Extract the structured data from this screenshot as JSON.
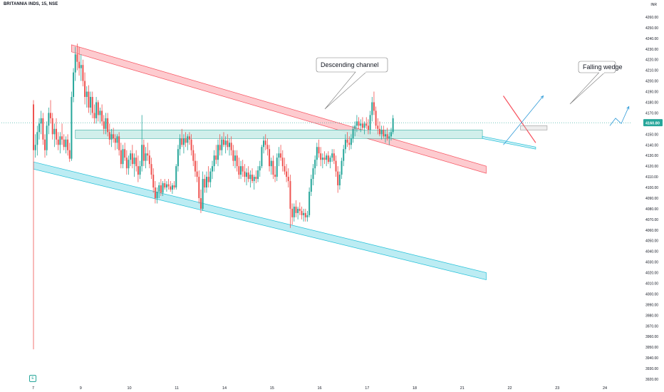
{
  "header": {
    "symbol_title": "BRITANNIA INDS, 15, NSE",
    "currency": "INR"
  },
  "last_price": {
    "value": 4160.8,
    "label": "4160.80",
    "color": "#26a69a"
  },
  "colors": {
    "up": "#26a69a",
    "down": "#ef5350",
    "channel_red": "#f7525f",
    "channel_cyan": "#22c0d8",
    "zone_fill": "#cdeee9",
    "arrow_blue": "#2f9bd8"
  },
  "badge": {
    "label": "E",
    "icon": "earnings-icon"
  },
  "annotations": {
    "descending_channel": "Descending channel",
    "falling_wedge": "Falling wedge"
  },
  "chart_data": {
    "type": "candlestick",
    "title": "BRITANNIA INDS, 15, NSE",
    "ylim": [
      3920,
      4270
    ],
    "y_ticks": [
      3920,
      3930,
      3940,
      3950,
      3960,
      3970,
      3980,
      3990,
      4000,
      4010,
      4020,
      4030,
      4040,
      4050,
      4060,
      4070,
      4080,
      4090,
      4100,
      4110,
      4120,
      4130,
      4140,
      4150,
      4160,
      4170,
      4180,
      4190,
      4200,
      4210,
      4220,
      4230,
      4240,
      4250,
      4260
    ],
    "y_tick_labels": [
      "3920.00",
      "3930.00",
      "3940.00",
      "3950.00",
      "3960.00",
      "3970.00",
      "3980.00",
      "3990.00",
      "4000.00",
      "4010.00",
      "4020.00",
      "4030.00",
      "4040.00",
      "4050.00",
      "4060.00",
      "4070.00",
      "4080.00",
      "4090.00",
      "4100.00",
      "4110.00",
      "4120.00",
      "4130.00",
      "4140.00",
      "4150.00",
      "4160.00",
      "4170.00",
      "4180.00",
      "4190.00",
      "4200.00",
      "4210.00",
      "4220.00",
      "4230.00",
      "4240.00",
      "4250.00",
      "4260.00"
    ],
    "x_labels": [
      "7",
      "9",
      "10",
      "11",
      "14",
      "15",
      "16",
      "17",
      "18",
      "21",
      "22",
      "23",
      "24"
    ],
    "x_label_bar_index": [
      0,
      25,
      50,
      75,
      100,
      125,
      150,
      175,
      200,
      225,
      250,
      275,
      300
    ],
    "grid": false,
    "ohlc": [
      [
        4178,
        4182,
        3948,
        4135
      ],
      [
        4135,
        4150,
        4128,
        4140
      ],
      [
        4140,
        4158,
        4130,
        4152
      ],
      [
        4152,
        4165,
        4145,
        4160
      ],
      [
        4160,
        4172,
        4150,
        4165
      ],
      [
        4165,
        4170,
        4140,
        4145
      ],
      [
        4145,
        4150,
        4128,
        4135
      ],
      [
        4135,
        4162,
        4130,
        4158
      ],
      [
        4158,
        4175,
        4150,
        4170
      ],
      [
        4170,
        4182,
        4160,
        4165
      ],
      [
        4165,
        4170,
        4145,
        4150
      ],
      [
        4150,
        4160,
        4138,
        4155
      ],
      [
        4155,
        4165,
        4140,
        4145
      ],
      [
        4145,
        4152,
        4135,
        4140
      ],
      [
        4140,
        4152,
        4132,
        4148
      ],
      [
        4148,
        4160,
        4140,
        4145
      ],
      [
        4145,
        4150,
        4135,
        4138
      ],
      [
        4138,
        4148,
        4132,
        4145
      ],
      [
        4145,
        4150,
        4130,
        4135
      ],
      [
        4135,
        4142,
        4124,
        4127
      ],
      [
        4127,
        4190,
        4125,
        4185
      ],
      [
        4185,
        4212,
        4180,
        4208
      ],
      [
        4208,
        4232,
        4200,
        4225
      ],
      [
        4225,
        4235,
        4210,
        4218
      ],
      [
        4218,
        4232,
        4205,
        4212
      ],
      [
        4212,
        4225,
        4200,
        4215
      ],
      [
        4215,
        4220,
        4195,
        4200
      ],
      [
        4200,
        4208,
        4178,
        4185
      ],
      [
        4185,
        4195,
        4175,
        4190
      ],
      [
        4190,
        4196,
        4170,
        4175
      ],
      [
        4175,
        4190,
        4168,
        4185
      ],
      [
        4185,
        4190,
        4165,
        4170
      ],
      [
        4170,
        4178,
        4160,
        4165
      ],
      [
        4165,
        4185,
        4160,
        4180
      ],
      [
        4180,
        4182,
        4162,
        4168
      ],
      [
        4168,
        4175,
        4160,
        4172
      ],
      [
        4172,
        4178,
        4158,
        4162
      ],
      [
        4162,
        4168,
        4150,
        4155
      ],
      [
        4155,
        4170,
        4150,
        4165
      ],
      [
        4165,
        4170,
        4148,
        4152
      ],
      [
        4152,
        4160,
        4140,
        4145
      ],
      [
        4145,
        4155,
        4138,
        4150
      ],
      [
        4150,
        4156,
        4142,
        4146
      ],
      [
        4146,
        4150,
        4135,
        4142
      ],
      [
        4142,
        4150,
        4136,
        4148
      ],
      [
        4148,
        4152,
        4130,
        4135
      ],
      [
        4135,
        4142,
        4118,
        4122
      ],
      [
        4122,
        4140,
        4118,
        4136
      ],
      [
        4136,
        4142,
        4125,
        4128
      ],
      [
        4128,
        4135,
        4112,
        4118
      ],
      [
        4118,
        4130,
        4112,
        4126
      ],
      [
        4126,
        4135,
        4120,
        4132
      ],
      [
        4132,
        4140,
        4118,
        4122
      ],
      [
        4122,
        4132,
        4110,
        4128
      ],
      [
        4128,
        4135,
        4115,
        4120
      ],
      [
        4120,
        4130,
        4105,
        4112
      ],
      [
        4112,
        4125,
        4108,
        4120
      ],
      [
        4120,
        4168,
        4115,
        4140
      ],
      [
        4140,
        4145,
        4120,
        4125
      ],
      [
        4125,
        4138,
        4118,
        4132
      ],
      [
        4132,
        4142,
        4125,
        4130
      ],
      [
        4130,
        4135,
        4118,
        4122
      ],
      [
        4122,
        4128,
        4108,
        4112
      ],
      [
        4112,
        4118,
        4095,
        4100
      ],
      [
        4100,
        4106,
        4085,
        4090
      ],
      [
        4090,
        4100,
        4085,
        4096
      ],
      [
        4096,
        4105,
        4090,
        4102
      ],
      [
        4102,
        4108,
        4092,
        4095
      ],
      [
        4095,
        4106,
        4092,
        4104
      ],
      [
        4104,
        4108,
        4098,
        4100
      ],
      [
        4100,
        4106,
        4096,
        4103
      ],
      [
        4103,
        4108,
        4098,
        4101
      ],
      [
        4101,
        4106,
        4096,
        4098
      ],
      [
        4098,
        4104,
        4094,
        4102
      ],
      [
        4102,
        4106,
        4098,
        4100
      ],
      [
        4100,
        4122,
        4098,
        4120
      ],
      [
        4120,
        4140,
        4115,
        4136
      ],
      [
        4136,
        4150,
        4130,
        4146
      ],
      [
        4146,
        4155,
        4138,
        4140
      ],
      [
        4140,
        4150,
        4132,
        4146
      ],
      [
        4146,
        4152,
        4138,
        4142
      ],
      [
        4142,
        4150,
        4135,
        4148
      ],
      [
        4148,
        4152,
        4140,
        4145
      ],
      [
        4145,
        4150,
        4130,
        4135
      ],
      [
        4135,
        4140,
        4120,
        4125
      ],
      [
        4125,
        4132,
        4110,
        4115
      ],
      [
        4115,
        4125,
        4105,
        4110
      ],
      [
        4110,
        4116,
        4085,
        4090
      ],
      [
        4090,
        4098,
        4076,
        4080
      ],
      [
        4080,
        4115,
        4078,
        4108
      ],
      [
        4108,
        4112,
        4095,
        4100
      ],
      [
        4100,
        4115,
        4095,
        4110
      ],
      [
        4110,
        4120,
        4100,
        4105
      ],
      [
        4105,
        4118,
        4100,
        4115
      ],
      [
        4115,
        4125,
        4108,
        4120
      ],
      [
        4120,
        4135,
        4115,
        4130
      ],
      [
        4130,
        4140,
        4122,
        4126
      ],
      [
        4126,
        4145,
        4120,
        4140
      ],
      [
        4140,
        4150,
        4130,
        4135
      ],
      [
        4135,
        4148,
        4130,
        4145
      ],
      [
        4145,
        4152,
        4138,
        4140
      ],
      [
        4140,
        4148,
        4132,
        4144
      ],
      [
        4144,
        4150,
        4135,
        4138
      ],
      [
        4138,
        4146,
        4130,
        4142
      ],
      [
        4142,
        4148,
        4130,
        4135
      ],
      [
        4135,
        4140,
        4120,
        4125
      ],
      [
        4125,
        4135,
        4118,
        4130
      ],
      [
        4130,
        4135,
        4115,
        4120
      ],
      [
        4120,
        4128,
        4108,
        4112
      ],
      [
        4112,
        4125,
        4108,
        4120
      ],
      [
        4120,
        4126,
        4110,
        4115
      ],
      [
        4115,
        4122,
        4105,
        4110
      ],
      [
        4110,
        4118,
        4102,
        4114
      ],
      [
        4114,
        4120,
        4105,
        4108
      ],
      [
        4108,
        4116,
        4100,
        4112
      ],
      [
        4112,
        4118,
        4104,
        4106
      ],
      [
        4106,
        4112,
        4098,
        4110
      ],
      [
        4110,
        4116,
        4104,
        4108
      ],
      [
        4108,
        4120,
        4105,
        4116
      ],
      [
        4116,
        4125,
        4110,
        4120
      ],
      [
        4120,
        4140,
        4118,
        4138
      ],
      [
        4138,
        4148,
        4132,
        4144
      ],
      [
        4144,
        4150,
        4135,
        4140
      ],
      [
        4140,
        4146,
        4130,
        4136
      ],
      [
        4136,
        4140,
        4115,
        4120
      ],
      [
        4120,
        4128,
        4112,
        4125
      ],
      [
        4125,
        4130,
        4108,
        4112
      ],
      [
        4112,
        4120,
        4105,
        4110
      ],
      [
        4110,
        4132,
        4106,
        4128
      ],
      [
        4128,
        4138,
        4120,
        4132
      ],
      [
        4132,
        4140,
        4125,
        4128
      ],
      [
        4128,
        4135,
        4115,
        4120
      ],
      [
        4120,
        4128,
        4112,
        4115
      ],
      [
        4115,
        4122,
        4105,
        4110
      ],
      [
        4110,
        4118,
        4100,
        4106
      ],
      [
        4106,
        4112,
        4062,
        4080
      ],
      [
        4080,
        4085,
        4065,
        4072
      ],
      [
        4072,
        4085,
        4068,
        4082
      ],
      [
        4082,
        4088,
        4072,
        4076
      ],
      [
        4076,
        4082,
        4070,
        4080
      ],
      [
        4080,
        4086,
        4074,
        4078
      ],
      [
        4078,
        4082,
        4070,
        4074
      ],
      [
        4074,
        4080,
        4068,
        4076
      ],
      [
        4076,
        4080,
        4068,
        4072
      ],
      [
        4072,
        4078,
        4068,
        4074
      ],
      [
        4074,
        4100,
        4072,
        4096
      ],
      [
        4096,
        4112,
        4092,
        4108
      ],
      [
        4108,
        4122,
        4102,
        4118
      ],
      [
        4118,
        4130,
        4112,
        4126
      ],
      [
        4126,
        4142,
        4120,
        4138
      ],
      [
        4138,
        4145,
        4128,
        4132
      ],
      [
        4132,
        4138,
        4120,
        4126
      ],
      [
        4126,
        4132,
        4118,
        4128
      ],
      [
        4128,
        4134,
        4122,
        4126
      ],
      [
        4126,
        4132,
        4120,
        4130
      ],
      [
        4130,
        4134,
        4122,
        4124
      ],
      [
        4124,
        4130,
        4118,
        4128
      ],
      [
        4128,
        4136,
        4124,
        4132
      ],
      [
        4132,
        4136,
        4122,
        4125
      ],
      [
        4125,
        4130,
        4110,
        4115
      ],
      [
        4115,
        4120,
        4095,
        4102
      ],
      [
        4102,
        4115,
        4098,
        4112
      ],
      [
        4112,
        4128,
        4108,
        4125
      ],
      [
        4125,
        4140,
        4120,
        4136
      ],
      [
        4136,
        4150,
        4132,
        4145
      ],
      [
        4145,
        4152,
        4138,
        4142
      ],
      [
        4142,
        4148,
        4135,
        4140
      ],
      [
        4140,
        4150,
        4136,
        4146
      ],
      [
        4146,
        4158,
        4142,
        4155
      ],
      [
        4155,
        4162,
        4148,
        4158
      ],
      [
        4158,
        4168,
        4152,
        4162
      ],
      [
        4162,
        4166,
        4155,
        4158
      ],
      [
        4158,
        4164,
        4152,
        4160
      ],
      [
        4160,
        4166,
        4154,
        4156
      ],
      [
        4156,
        4162,
        4150,
        4160
      ],
      [
        4160,
        4166,
        4155,
        4158
      ],
      [
        4158,
        4164,
        4150,
        4154
      ],
      [
        4154,
        4172,
        4150,
        4168
      ],
      [
        4168,
        4185,
        4162,
        4180
      ],
      [
        4180,
        4190,
        4168,
        4172
      ],
      [
        4172,
        4176,
        4155,
        4158
      ],
      [
        4158,
        4165,
        4150,
        4155
      ],
      [
        4155,
        4162,
        4148,
        4150
      ],
      [
        4150,
        4158,
        4145,
        4154
      ],
      [
        4154,
        4158,
        4146,
        4148
      ],
      [
        4148,
        4154,
        4142,
        4150
      ],
      [
        4150,
        4156,
        4144,
        4146
      ],
      [
        4146,
        4152,
        4140,
        4148
      ],
      [
        4148,
        4156,
        4144,
        4152
      ],
      [
        4152,
        4168,
        4150,
        4165
      ]
    ],
    "trendlines": {
      "descending_channel_upper": {
        "from": [
          20,
          4234
        ],
        "to": [
          238,
          4120
        ]
      },
      "descending_channel_lower": {
        "from": [
          0,
          4124
        ],
        "to": [
          238,
          4020
        ]
      },
      "horizontal_zone": {
        "from_bar": 22,
        "to_bar": 236,
        "y": [
          4146,
          4154
        ]
      },
      "wedge_upper": {
        "from": [
          247,
          4186
        ],
        "to": [
          264,
          4142
        ]
      },
      "wedge_lower": {
        "from": [
          236,
          4148
        ],
        "to": [
          264,
          4138
        ]
      },
      "wedge_box": {
        "from_bar": 256,
        "to_bar": 270,
        "y": [
          4154,
          4158
        ]
      }
    }
  }
}
